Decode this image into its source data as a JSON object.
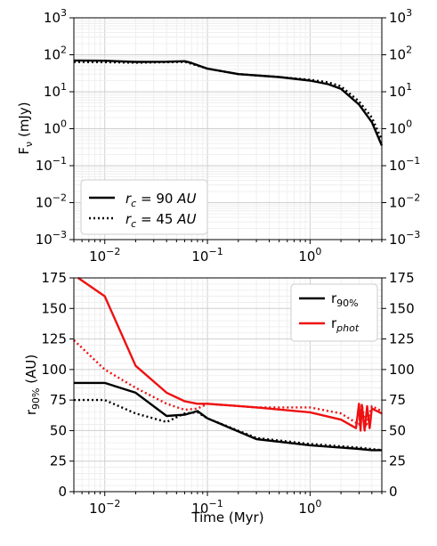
{
  "colors": {
    "black": "#000000",
    "red": "#ee1111",
    "grid": "#d9d9d9"
  },
  "chart_data": [
    {
      "type": "line",
      "xscale": "log",
      "yscale": "log",
      "xlim": [
        0.005,
        5
      ],
      "ylim": [
        0.001,
        1000
      ],
      "ylabel": "F_ν (mJy)",
      "xlabel": "",
      "grid": true,
      "legend_position": "lower-left",
      "right_axis_ticks": true,
      "x_ticks": [
        {
          "value": 0.01,
          "base": "10",
          "exp": "−2"
        },
        {
          "value": 0.1,
          "base": "10",
          "exp": "−1"
        },
        {
          "value": 1,
          "base": "10",
          "exp": "0"
        }
      ],
      "y_ticks": [
        {
          "value": 0.001,
          "base": "10",
          "exp": "−3"
        },
        {
          "value": 0.01,
          "base": "10",
          "exp": "−2"
        },
        {
          "value": 0.1,
          "base": "10",
          "exp": "−1"
        },
        {
          "value": 1,
          "base": "10",
          "exp": "0"
        },
        {
          "value": 10,
          "base": "10",
          "exp": "1"
        },
        {
          "value": 100,
          "base": "10",
          "exp": "2"
        },
        {
          "value": 1000,
          "base": "10",
          "exp": "3"
        }
      ],
      "series": [
        {
          "name": "r_c = 90 AU",
          "color": "#000000",
          "style": "solid",
          "x": [
            0.005,
            0.01,
            0.02,
            0.04,
            0.06,
            0.07,
            0.1,
            0.2,
            0.5,
            1,
            1.5,
            2,
            3,
            4,
            5
          ],
          "y": [
            70,
            69,
            64,
            65,
            67,
            60,
            42,
            30,
            25,
            20,
            16,
            12,
            4.5,
            1.5,
            0.35
          ]
        },
        {
          "name": "r_c = 45 AU",
          "color": "#000000",
          "style": "dotted",
          "x": [
            0.005,
            0.01,
            0.02,
            0.04,
            0.06,
            0.07,
            0.1,
            0.2,
            0.5,
            1,
            1.5,
            2,
            3,
            4,
            5
          ],
          "y": [
            64,
            63,
            61,
            63,
            64,
            57,
            42,
            30,
            25,
            21,
            18,
            14,
            5.5,
            2,
            0.5
          ]
        }
      ]
    },
    {
      "type": "line",
      "xscale": "log",
      "xlim": [
        0.005,
        5
      ],
      "ylim": [
        0,
        175
      ],
      "xlabel": "Time (Myr)",
      "ylabel": "r_90% (AU)",
      "grid": true,
      "legend_position": "top-right",
      "right_axis_ticks": true,
      "x_ticks": [
        {
          "value": 0.01,
          "base": "10",
          "exp": "−2"
        },
        {
          "value": 0.1,
          "base": "10",
          "exp": "−1"
        },
        {
          "value": 1,
          "base": "10",
          "exp": "0"
        }
      ],
      "y_ticks": [
        0,
        25,
        50,
        75,
        100,
        125,
        150,
        175
      ],
      "series": [
        {
          "name": "r_90%",
          "color": "#000000",
          "style": "solid",
          "x": [
            0.005,
            0.01,
            0.02,
            0.04,
            0.06,
            0.08,
            0.1,
            0.3,
            1,
            3,
            4,
            5
          ],
          "y": [
            89,
            89,
            81,
            62,
            63,
            66,
            60,
            43,
            38,
            35,
            34,
            34
          ]
        },
        {
          "color": "#000000",
          "style": "dotted",
          "x": [
            0.005,
            0.01,
            0.02,
            0.04,
            0.06,
            0.08,
            0.1,
            0.3,
            1,
            3,
            5
          ],
          "y": [
            75,
            75,
            64,
            57,
            64,
            65,
            60,
            44,
            39,
            36,
            34
          ]
        },
        {
          "name": "r_phot",
          "color": "#ee1111",
          "style": "solid",
          "x": [
            0.0055,
            0.01,
            0.02,
            0.04,
            0.06,
            0.08,
            0.1,
            0.3,
            1,
            2,
            2.8,
            3.0,
            3.1,
            3.2,
            3.4,
            3.6,
            3.8,
            4,
            5
          ],
          "y": [
            175,
            160,
            103,
            81,
            74,
            72,
            72,
            69,
            65,
            59,
            52,
            72,
            50,
            71,
            50,
            70,
            52,
            68,
            64
          ]
        },
        {
          "color": "#ee1111",
          "style": "dotted",
          "x": [
            0.005,
            0.01,
            0.02,
            0.04,
            0.06,
            0.08,
            0.1,
            0.3,
            1,
            2,
            3,
            3.2,
            3.5,
            4,
            5
          ],
          "y": [
            124,
            100,
            85,
            72,
            67,
            68,
            72,
            69,
            69,
            64,
            55,
            71,
            53,
            70,
            66
          ]
        }
      ]
    }
  ]
}
